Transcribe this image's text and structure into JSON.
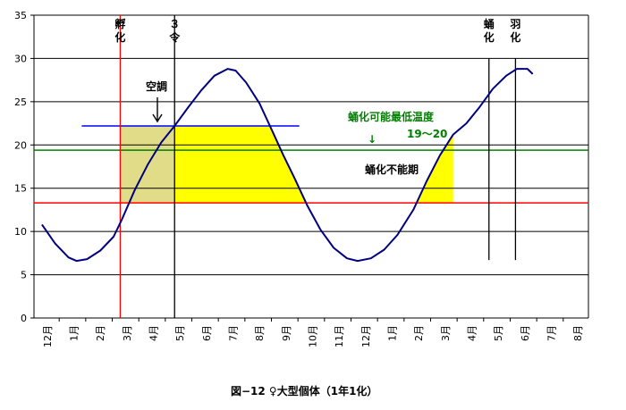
{
  "chart_data": {
    "type": "line",
    "title": "",
    "caption": "図−12 ♀大型個体（1年1化）",
    "xlabel": "",
    "ylabel": "",
    "ylim": [
      0,
      35
    ],
    "yticks": [
      0,
      5,
      10,
      15,
      20,
      25,
      30,
      35
    ],
    "grid": true,
    "legend": "none",
    "months": [
      "12月",
      "1月",
      "2月",
      "3月",
      "4月",
      "5月",
      "6月",
      "7月",
      "8月",
      "9月",
      "10月",
      "11月",
      "12月",
      "1月",
      "2月",
      "3月",
      "4月",
      "5月",
      "6月",
      "7月",
      "8月"
    ],
    "series": [
      {
        "color": "#000080",
        "points": [
          [
            0.3,
            10.8
          ],
          [
            0.8,
            8.6
          ],
          [
            1.3,
            7.0
          ],
          [
            1.6,
            6.6
          ],
          [
            2.0,
            6.8
          ],
          [
            2.5,
            7.8
          ],
          [
            3.0,
            9.4
          ],
          [
            3.3,
            11.3
          ],
          [
            3.8,
            14.8
          ],
          [
            4.3,
            17.8
          ],
          [
            4.8,
            20.3
          ],
          [
            5.3,
            22.2
          ],
          [
            5.8,
            24.3
          ],
          [
            6.3,
            26.3
          ],
          [
            6.8,
            28.0
          ],
          [
            7.3,
            28.8
          ],
          [
            7.6,
            28.6
          ],
          [
            8.0,
            27.2
          ],
          [
            8.5,
            24.8
          ],
          [
            9.0,
            21.5
          ],
          [
            9.4,
            18.8
          ],
          [
            9.8,
            16.3
          ],
          [
            10.3,
            13.0
          ],
          [
            10.8,
            10.2
          ],
          [
            11.3,
            8.1
          ],
          [
            11.8,
            6.9
          ],
          [
            12.2,
            6.6
          ],
          [
            12.7,
            6.9
          ],
          [
            13.2,
            7.9
          ],
          [
            13.7,
            9.6
          ],
          [
            14.3,
            12.5
          ],
          [
            14.8,
            15.8
          ],
          [
            15.3,
            18.8
          ],
          [
            15.8,
            21.2
          ],
          [
            16.3,
            22.5
          ],
          [
            16.8,
            24.4
          ],
          [
            17.3,
            26.5
          ],
          [
            17.8,
            28.0
          ],
          [
            18.2,
            28.8
          ],
          [
            18.6,
            28.8
          ],
          [
            18.8,
            28.2
          ]
        ]
      }
    ],
    "horizontal_lines": [
      {
        "name": "red-threshold",
        "y": 13.3,
        "color": "#ff0000"
      },
      {
        "name": "green-threshold",
        "y": 19.4,
        "color": "#008000"
      },
      {
        "name": "blue-aircon",
        "y": 22.2,
        "x_from": 1.8,
        "x_to": 10.0,
        "color": "#0000ff"
      }
    ],
    "vertical_lines": [
      {
        "name": "hatch",
        "x": 3.25,
        "y_to": 35,
        "color": "#ff0000",
        "label": "孵化"
      },
      {
        "name": "instar3",
        "x": 5.3,
        "y_to": 35,
        "color": "#000000",
        "label": "３令"
      },
      {
        "name": "pupation",
        "x": 17.15,
        "y_from": 6.7,
        "y_to": 30,
        "color": "#000000",
        "label": "蛹化"
      },
      {
        "name": "emergence",
        "x": 18.15,
        "y_from": 6.7,
        "y_to": 30,
        "color": "#000000",
        "label": "羽化"
      }
    ],
    "annotations": {
      "aircon": "空調",
      "min_temp_title": "蛹化可能最低温度",
      "min_temp_range": "19〜20",
      "min_temp_arrow": "↓",
      "impossible": "蛹化不能期"
    },
    "fills": [
      {
        "name": "aircon-region",
        "x_from": 3.25,
        "x_to": 5.3,
        "color": "#e0dc88"
      },
      {
        "name": "yellow-1",
        "x_from": 5.3,
        "x_to": 10.2,
        "color": "#ffff00"
      },
      {
        "name": "yellow-2",
        "x_from": 14.5,
        "x_to": 15.8,
        "color": "#ffff00"
      }
    ],
    "colors": {
      "axis": "#000000",
      "grid": "#000000",
      "curve": "#000080"
    }
  }
}
